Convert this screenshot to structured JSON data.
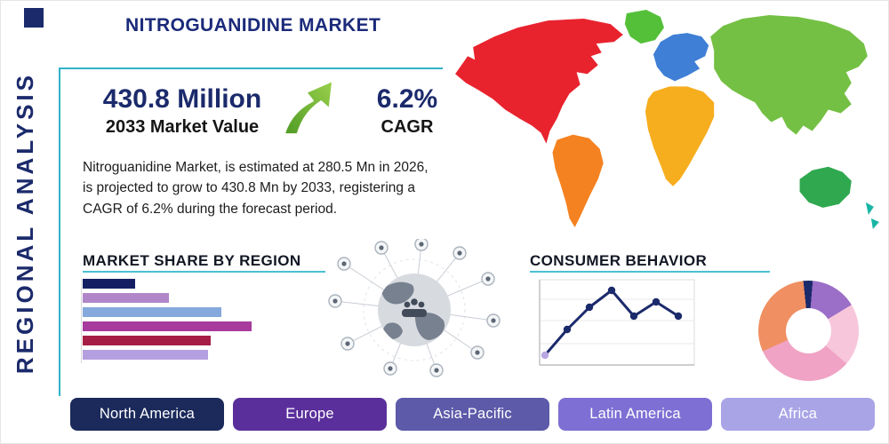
{
  "page": {
    "title": "NITROGUANIDINE MARKET",
    "side_label": "REGIONAL ANALYSIS"
  },
  "stats": {
    "market_value": "430.8 Million",
    "market_value_label": "2033 Market Value",
    "cagr_value": "6.2%",
    "cagr_label": "CAGR",
    "description": "Nitroguanidine Market, is estimated at 280.5 Mn in 2026, is projected to grow to 430.8 Mn by 2033, registering a CAGR of 6.2% during the forecast period.",
    "accent_color": "#2fb3c7",
    "navy_color": "#1b2a6b",
    "arrow_color": "#6ab52e"
  },
  "sections": {
    "market_share_title": "MARKET SHARE BY REGION",
    "consumer_behavior_title": "CONSUMER BEHAVIOR"
  },
  "regions": [
    {
      "label": "North America",
      "color": "#1b2a5b"
    },
    {
      "label": "Europe",
      "color": "#5a2f9b"
    },
    {
      "label": "Asia-Pacific",
      "color": "#5d5aa9"
    },
    {
      "label": "Latin America",
      "color": "#7e6fd4"
    },
    {
      "label": "Africa",
      "color": "#a9a4e6"
    }
  ],
  "map": {
    "continents": [
      {
        "name": "North America",
        "color": "#e8232e"
      },
      {
        "name": "Greenland",
        "color": "#54c03a"
      },
      {
        "name": "South America",
        "color": "#f58220"
      },
      {
        "name": "Europe",
        "color": "#3f7fd6"
      },
      {
        "name": "Africa",
        "color": "#f6ad1e"
      },
      {
        "name": "Asia",
        "color": "#74c044"
      },
      {
        "name": "Australia",
        "color": "#2fa84f"
      },
      {
        "name": "New Zealand",
        "color": "#19b5a5"
      }
    ]
  },
  "chart_data": [
    {
      "type": "bar",
      "title": "MARKET SHARE BY REGION",
      "orientation": "horizontal",
      "values": [
        31,
        51,
        82,
        100,
        76,
        74
      ],
      "xlim": [
        0,
        100
      ],
      "colors": [
        "#141f63",
        "#b186c9",
        "#85a9dc",
        "#a83a9e",
        "#a61e45",
        "#b49fe0"
      ]
    },
    {
      "type": "line",
      "title": "CONSUMER BEHAVIOR",
      "x": [
        1,
        2,
        3,
        4,
        5,
        6,
        7
      ],
      "values": [
        12,
        42,
        68,
        88,
        58,
        75,
        58
      ],
      "ylim": [
        0,
        100
      ],
      "line_color": "#1b2a6b",
      "first_point_color": "#b9a7e0",
      "grid": true
    },
    {
      "type": "pie",
      "donut": true,
      "values": [
        3,
        15,
        20,
        32,
        30
      ],
      "colors": [
        "#1b2a6b",
        "#9b6ec8",
        "#f7c6da",
        "#f0a3c4",
        "#ef8f62"
      ]
    }
  ]
}
